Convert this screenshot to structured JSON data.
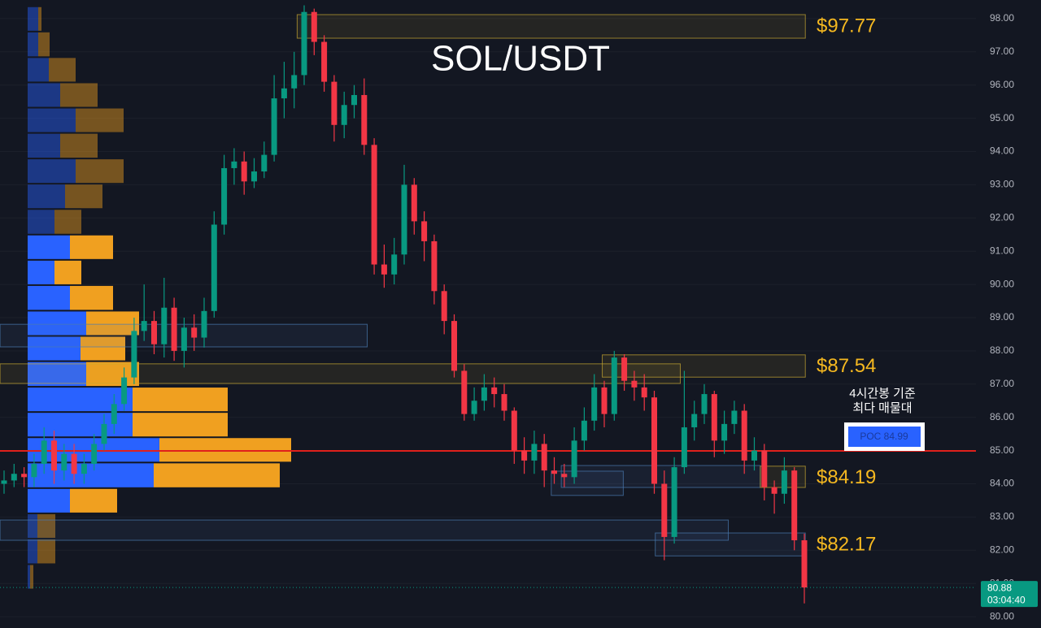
{
  "chart_data": {
    "type": "candlestick",
    "title": "SOL/USDT",
    "open": [
      84.0,
      84.1,
      84.3,
      84.2,
      84.6,
      85.3,
      84.4,
      84.9,
      84.3,
      84.6,
      85.2,
      85.8,
      86.4,
      87.2,
      88.6,
      88.9,
      88.2,
      89.3,
      88.0,
      88.7,
      88.4,
      89.2,
      91.8,
      93.5,
      93.7,
      93.1,
      93.4,
      93.9,
      95.6,
      95.9,
      96.3,
      98.2,
      97.3,
      96.1,
      94.8,
      95.4,
      95.7,
      94.2,
      90.6,
      90.3,
      90.9,
      93.0,
      91.9,
      91.3,
      89.8,
      88.9,
      87.4,
      86.1,
      86.5,
      86.9,
      86.7,
      86.2,
      85.0,
      84.7,
      85.2,
      84.4,
      84.3,
      84.2,
      85.3,
      85.9,
      86.9,
      86.1,
      87.8,
      87.1,
      86.9,
      86.6,
      84.0,
      82.4,
      84.5,
      85.7,
      86.1,
      86.7,
      85.3,
      85.8,
      86.2,
      84.7,
      85.0,
      83.9,
      83.7,
      84.4,
      82.3
    ],
    "high": [
      84.4,
      84.6,
      84.5,
      84.9,
      85.7,
      85.6,
      85.2,
      85.2,
      84.9,
      85.5,
      86.1,
      86.7,
      87.5,
      89.0,
      90.0,
      89.2,
      90.2,
      89.6,
      89.0,
      89.1,
      89.6,
      92.2,
      93.9,
      94.1,
      94.0,
      93.8,
      94.3,
      96.3,
      96.7,
      97.0,
      98.4,
      98.3,
      97.5,
      96.3,
      95.8,
      96.0,
      96.2,
      94.4,
      91.2,
      91.4,
      93.6,
      93.2,
      92.2,
      91.5,
      90.0,
      89.1,
      87.6,
      86.9,
      87.3,
      87.2,
      87.0,
      86.3,
      85.4,
      85.6,
      85.5,
      84.8,
      84.6,
      85.7,
      86.3,
      87.3,
      87.1,
      88.0,
      87.9,
      87.4,
      87.3,
      86.8,
      84.4,
      84.8,
      87.4,
      86.5,
      87.0,
      86.8,
      86.2,
      86.5,
      86.4,
      85.4,
      85.2,
      84.1,
      84.8,
      84.5,
      82.5
    ],
    "low": [
      83.7,
      83.9,
      83.9,
      83.9,
      84.3,
      84.0,
      84.1,
      84.0,
      84.0,
      84.4,
      85.0,
      85.5,
      86.2,
      87.0,
      88.3,
      87.9,
      87.8,
      87.7,
      87.5,
      88.0,
      88.1,
      89.0,
      91.5,
      93.0,
      92.7,
      92.9,
      93.2,
      93.7,
      95.0,
      95.3,
      96.0,
      96.9,
      95.8,
      94.3,
      94.4,
      95.0,
      93.9,
      90.3,
      89.9,
      90.0,
      90.6,
      91.5,
      90.7,
      89.4,
      88.5,
      87.2,
      85.9,
      85.9,
      86.2,
      86.3,
      85.9,
      84.6,
      84.3,
      84.3,
      83.9,
      84.0,
      83.9,
      84.0,
      85.0,
      85.6,
      85.7,
      85.9,
      86.8,
      86.5,
      86.2,
      83.7,
      81.7,
      82.2,
      84.3,
      85.3,
      85.8,
      84.8,
      84.9,
      85.5,
      84.3,
      84.4,
      83.5,
      83.1,
      83.4,
      82.0,
      80.4
    ],
    "close": [
      84.1,
      84.3,
      84.2,
      84.6,
      85.3,
      84.4,
      84.9,
      84.3,
      84.6,
      85.2,
      85.8,
      86.4,
      87.2,
      88.6,
      88.9,
      88.2,
      89.3,
      88.0,
      88.7,
      88.4,
      89.2,
      91.8,
      93.5,
      93.7,
      93.1,
      93.4,
      93.9,
      95.6,
      95.9,
      96.3,
      98.2,
      97.3,
      96.1,
      94.8,
      95.4,
      95.7,
      94.2,
      90.6,
      90.3,
      90.9,
      93.0,
      91.9,
      91.3,
      89.8,
      88.9,
      87.4,
      86.1,
      86.5,
      86.9,
      86.7,
      86.2,
      85.0,
      84.7,
      85.2,
      84.4,
      84.3,
      84.2,
      85.3,
      85.9,
      86.9,
      86.1,
      87.8,
      87.1,
      86.9,
      86.6,
      84.0,
      82.4,
      84.5,
      85.7,
      86.1,
      86.7,
      85.3,
      85.8,
      86.2,
      84.7,
      85.0,
      83.9,
      83.7,
      84.4,
      82.3,
      80.88
    ],
    "up_color": "#089981",
    "down_color": "#f23645",
    "ylim": [
      79.66,
      98.56
    ],
    "yticks": [
      {
        "value": 80,
        "label": "80.00"
      },
      {
        "value": 81,
        "label": "81.00"
      },
      {
        "value": 82,
        "label": "82.00"
      },
      {
        "value": 83,
        "label": "83.00"
      },
      {
        "value": 84,
        "label": "84.00"
      },
      {
        "value": 85,
        "label": "85.00"
      },
      {
        "value": 86,
        "label": "86.00"
      },
      {
        "value": 87,
        "label": "87.00"
      },
      {
        "value": 88,
        "label": "88.00"
      },
      {
        "value": 89,
        "label": "89.00"
      },
      {
        "value": 90,
        "label": "90.00"
      },
      {
        "value": 91,
        "label": "91.00"
      },
      {
        "value": 92,
        "label": "92.00"
      },
      {
        "value": 93,
        "label": "93.00"
      },
      {
        "value": 94,
        "label": "94.00"
      },
      {
        "value": 95,
        "label": "95.00"
      },
      {
        "value": 96,
        "label": "96.00"
      },
      {
        "value": 97,
        "label": "97.00"
      },
      {
        "value": 98,
        "label": "98.00"
      }
    ],
    "grid": true,
    "profile": {
      "bins": [
        80.82,
        81.58,
        82.35,
        83.11,
        83.87,
        84.64,
        85.4,
        86.16,
        86.92,
        87.69,
        88.45,
        89.21,
        89.98,
        90.74,
        91.5,
        92.27,
        93.03,
        93.79,
        94.56,
        95.32,
        96.08,
        96.84,
        97.61,
        98.37
      ],
      "buy": [
        3,
        12,
        12,
        52,
        155,
        162,
        129,
        129,
        72,
        65,
        72,
        52,
        33,
        52,
        33,
        46,
        59,
        40,
        59,
        40,
        26,
        13,
        13
      ],
      "sell": [
        4,
        22,
        22,
        58,
        155,
        162,
        117,
        117,
        65,
        55,
        65,
        53,
        33,
        53,
        33,
        46,
        59,
        46,
        59,
        46,
        33,
        14,
        4
      ],
      "buy_color": "#2962ff",
      "sell_color": "#f0a020",
      "value_area": [
        83.11,
        91.5
      ]
    },
    "zones": [
      {
        "from": 29.3,
        "to": 80.1,
        "top": 98.12,
        "bottom": 97.41,
        "color": "#c8a832"
      },
      {
        "from": 59.8,
        "to": 80.1,
        "top": 87.88,
        "bottom": 87.21,
        "color": "#c8a832"
      },
      {
        "from": -0.4,
        "to": 67.6,
        "top": 87.61,
        "bottom": 87.02,
        "color": "#c8a832"
      },
      {
        "from": -0.4,
        "to": 36.3,
        "top": 88.8,
        "bottom": 88.12,
        "color": "#4a7ab0"
      },
      {
        "from": 54.7,
        "to": 61.9,
        "top": 84.38,
        "bottom": 83.65,
        "color": "#4a7ab0"
      },
      {
        "from": 55.7,
        "to": 75.6,
        "top": 84.55,
        "bottom": 83.89,
        "color": "#4a7ab0"
      },
      {
        "from": -0.4,
        "to": 72.4,
        "top": 82.91,
        "bottom": 82.3,
        "color": "#4a7ab0"
      },
      {
        "from": 65.1,
        "to": 80.1,
        "top": 82.52,
        "bottom": 81.83,
        "color": "#4a7ab0"
      },
      {
        "from": 75.6,
        "to": 80.1,
        "top": 84.53,
        "bottom": 83.89,
        "color": "#c8a832"
      }
    ],
    "levels": [
      {
        "value": 97.77,
        "label": "$97.77"
      },
      {
        "value": 87.54,
        "label": "$87.54"
      },
      {
        "value": 84.19,
        "label": "$84.19"
      },
      {
        "value": 82.17,
        "label": "$82.17"
      }
    ],
    "poc": {
      "value": 84.99,
      "label": "POC  84.99",
      "color": "#e0201c"
    },
    "note": [
      "4시간봉 기준",
      "최다 매물대"
    ],
    "last_price": {
      "value": 80.88,
      "label": "80.88",
      "countdown": "03:04:40"
    }
  }
}
